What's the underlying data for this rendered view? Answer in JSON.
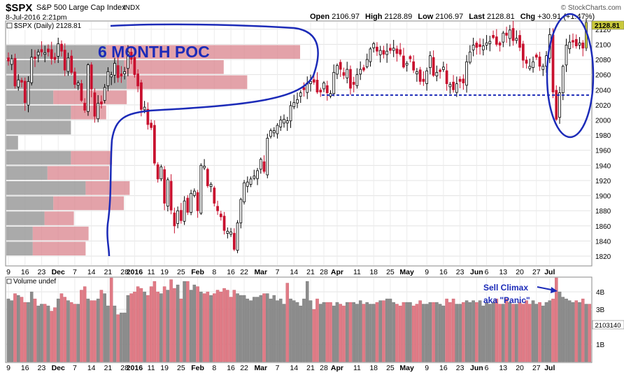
{
  "header": {
    "symbol": "$SPX",
    "name": "S&P 500 Large Cap Index",
    "exchange": "INDX",
    "date": "8-Jul-2016 2:21pm",
    "brand": "© StockCharts.com",
    "quote": {
      "open_label": "Open",
      "open": "2106.97",
      "high_label": "High",
      "high": "2128.89",
      "low_label": "Low",
      "low": "2106.97",
      "last_label": "Last",
      "last": "2128.81",
      "chg_label": "Chg",
      "chg": "+30.91 (+1.47%)"
    }
  },
  "price_panel": {
    "legend": "$SPX (Daily) 2128.81",
    "last_badge": "2128.81",
    "ylim": [
      1808,
      2130
    ],
    "y_ticks": [
      1820,
      1840,
      1860,
      1880,
      1900,
      1920,
      1940,
      1960,
      1980,
      2000,
      2020,
      2040,
      2060,
      2080,
      2100,
      2120
    ]
  },
  "volume_panel": {
    "legend": "Volume undef",
    "last_badge": "2103140",
    "ylim_billions": [
      0,
      4.8
    ],
    "y_ticks": [
      {
        "v": 1,
        "label": "1B"
      },
      {
        "v": 3,
        "label": "3B"
      },
      {
        "v": 4,
        "label": "4B"
      }
    ]
  },
  "x_axis": {
    "labels": [
      {
        "i": 0,
        "t": "9",
        "b": false
      },
      {
        "i": 5,
        "t": "16",
        "b": false
      },
      {
        "i": 10,
        "t": "23",
        "b": false
      },
      {
        "i": 15,
        "t": "Dec",
        "b": true
      },
      {
        "i": 20,
        "t": "7",
        "b": false
      },
      {
        "i": 25,
        "t": "14",
        "b": false
      },
      {
        "i": 30,
        "t": "21",
        "b": false
      },
      {
        "i": 35,
        "t": "28",
        "b": false
      },
      {
        "i": 38,
        "t": "2016",
        "b": true
      },
      {
        "i": 43,
        "t": "11",
        "b": false
      },
      {
        "i": 47,
        "t": "19",
        "b": false
      },
      {
        "i": 52,
        "t": "25",
        "b": false
      },
      {
        "i": 57,
        "t": "Feb",
        "b": true
      },
      {
        "i": 62,
        "t": "8",
        "b": false
      },
      {
        "i": 67,
        "t": "16",
        "b": false
      },
      {
        "i": 71,
        "t": "22",
        "b": false
      },
      {
        "i": 76,
        "t": "Mar",
        "b": true
      },
      {
        "i": 81,
        "t": "7",
        "b": false
      },
      {
        "i": 86,
        "t": "14",
        "b": false
      },
      {
        "i": 91,
        "t": "21",
        "b": false
      },
      {
        "i": 95,
        "t": "28",
        "b": false
      },
      {
        "i": 99,
        "t": "Apr",
        "b": true
      },
      {
        "i": 105,
        "t": "11",
        "b": false
      },
      {
        "i": 110,
        "t": "18",
        "b": false
      },
      {
        "i": 115,
        "t": "25",
        "b": false
      },
      {
        "i": 120,
        "t": "May",
        "b": true
      },
      {
        "i": 126,
        "t": "9",
        "b": false
      },
      {
        "i": 131,
        "t": "16",
        "b": false
      },
      {
        "i": 136,
        "t": "23",
        "b": false
      },
      {
        "i": 141,
        "t": "Jun",
        "b": true
      },
      {
        "i": 144,
        "t": "6",
        "b": false
      },
      {
        "i": 149,
        "t": "13",
        "b": false
      },
      {
        "i": 154,
        "t": "20",
        "b": false
      },
      {
        "i": 159,
        "t": "27",
        "b": false
      },
      {
        "i": 163,
        "t": "Jul",
        "b": true
      }
    ]
  },
  "annotations": {
    "poc_label": "6 MONTH POC",
    "sell_climax_line1": "Sell Climax",
    "sell_climax_line2": "aka \"Panic\"",
    "support_level": 2033
  },
  "colors": {
    "up": "#000000",
    "down": "#c8102e",
    "annotation_blue": "#1c2bb8",
    "vbp_gray": "#9b9b9b",
    "vbp_red": "#d9838c",
    "vol_up": "#8c8c8c",
    "vol_down": "#e07b86",
    "last_badge": "#c9c93c"
  },
  "chart_data": {
    "type": "candlestick",
    "start_date": "2015-11-09",
    "closes": [
      2078,
      2081,
      2045,
      2053,
      2050,
      2023,
      2051,
      2083,
      2081,
      2090,
      2090,
      2089,
      2090,
      2081,
      2080,
      2101,
      2091,
      2066,
      2082,
      2063,
      2047,
      2049,
      2026,
      2013,
      2073,
      2041,
      2005,
      2022,
      2021,
      2043,
      2064,
      2060,
      2075,
      2056,
      2058,
      2064,
      2090,
      2080,
      2060,
      2045,
      2014,
      2017,
      1994,
      1990,
      1943,
      1922,
      1938,
      1890,
      1921,
      1881,
      1860,
      1880,
      1867,
      1893,
      1878,
      1903,
      1906,
      1880,
      1940,
      1939,
      1913,
      1915,
      1890,
      1880,
      1872,
      1854,
      1853,
      1852,
      1829,
      1864,
      1895,
      1917,
      1918,
      1922,
      1926,
      1933,
      1948,
      1932,
      1976,
      1986,
      1986,
      1993,
      2000,
      2001,
      1999,
      2019,
      2023,
      2027,
      2036,
      2040,
      2049,
      2051,
      2050,
      2037,
      2037,
      2049,
      2036,
      2035,
      2063,
      2072,
      2067,
      2059,
      2067,
      2042,
      2047,
      2060,
      2067,
      2066,
      2080,
      2094,
      2101,
      2091,
      2092,
      2087,
      2091,
      2092,
      2095,
      2088,
      2087,
      2070,
      2075,
      2081,
      2066,
      2064,
      2051,
      2051,
      2065,
      2085,
      2059,
      2063,
      2064,
      2070,
      2048,
      2047,
      2040,
      2048,
      2051,
      2049,
      2077,
      2090,
      2099,
      2096,
      2097,
      2098,
      2102,
      2104,
      2109,
      2100,
      2099,
      2115,
      2112,
      2119,
      2105,
      2108,
      2096,
      2079,
      2075,
      2071,
      2077,
      2083,
      2071,
      2071,
      2085,
      2113,
      2037,
      2001,
      2036,
      2071,
      2099,
      2103,
      2103,
      2098,
      2102,
      2095,
      2129
    ],
    "volume_billions": [
      3.6,
      3.5,
      3.9,
      3.8,
      3.7,
      3.4,
      3.4,
      4.0,
      3.6,
      3.2,
      3.3,
      3.3,
      3.2,
      2.9,
      3.1,
      3.6,
      3.9,
      3.7,
      3.5,
      3.4,
      3.3,
      3.3,
      4.1,
      4.3,
      3.6,
      3.5,
      3.5,
      3.6,
      4.1,
      3.9,
      3.2,
      4.8,
      3.2,
      2.7,
      2.8,
      2.8,
      3.8,
      3.9,
      4.0,
      4.3,
      4.2,
      4.0,
      3.8,
      4.3,
      4.6,
      4.0,
      3.9,
      4.3,
      4.1,
      4.7,
      4.2,
      4.4,
      3.6,
      4.6,
      4.6,
      4.1,
      4.4,
      4.3,
      4.0,
      3.9,
      4.0,
      3.8,
      3.9,
      4.1,
      4.0,
      4.2,
      4.1,
      3.7,
      4.1,
      3.9,
      3.8,
      3.8,
      3.6,
      3.5,
      3.7,
      3.7,
      3.8,
      3.9,
      3.9,
      3.6,
      3.8,
      3.5,
      3.6,
      3.3,
      4.5,
      3.6,
      3.5,
      3.4,
      3.2,
      3.6,
      4.6,
      3.5,
      3.0,
      3.6,
      3.3,
      3.4,
      3.4,
      3.4,
      3.2,
      3.4,
      3.3,
      3.2,
      3.4,
      3.4,
      3.4,
      3.3,
      3.5,
      3.3,
      3.4,
      3.3,
      3.3,
      3.4,
      3.5,
      3.5,
      3.6,
      3.6,
      3.4,
      3.3,
      3.2,
      3.4,
      3.4,
      3.4,
      3.2,
      3.3,
      3.5,
      3.3,
      3.3,
      3.4,
      3.4,
      3.4,
      3.3,
      3.2,
      3.6,
      3.4,
      3.6,
      3.3,
      3.3,
      3.4,
      3.5,
      3.4,
      3.5,
      3.4,
      3.5,
      3.2,
      3.4,
      3.3,
      3.4,
      3.6,
      3.3,
      3.3,
      3.6,
      3.4,
      3.3,
      3.3,
      3.4,
      3.3,
      3.5,
      3.3,
      3.5,
      3.3,
      3.4,
      3.2,
      3.4,
      3.5,
      3.6,
      4.8,
      4.0,
      3.7,
      3.6,
      3.5,
      3.4,
      3.5,
      3.4,
      3.6,
      3.3,
      3.3
    ],
    "volume_by_price": [
      {
        "lo": 2080,
        "hi": 2100,
        "up": 0.34,
        "down": 0.66
      },
      {
        "lo": 2060,
        "hi": 2080,
        "up": 0.4,
        "down": 0.34
      },
      {
        "lo": 2040,
        "hi": 2060,
        "up": 0.41,
        "down": 0.41
      },
      {
        "lo": 2020,
        "hi": 2040,
        "up": 0.16,
        "down": 0.25
      },
      {
        "lo": 2000,
        "hi": 2020,
        "up": 0.22,
        "down": 0.12
      },
      {
        "lo": 1980,
        "hi": 2000,
        "up": 0.22,
        "down": 0.0
      },
      {
        "lo": 1960,
        "hi": 1980,
        "up": 0.04,
        "down": 0.0
      },
      {
        "lo": 1940,
        "hi": 1960,
        "up": 0.22,
        "down": 0.14
      },
      {
        "lo": 1920,
        "hi": 1940,
        "up": 0.14,
        "down": 0.21
      },
      {
        "lo": 1900,
        "hi": 1920,
        "up": 0.27,
        "down": 0.15
      },
      {
        "lo": 1880,
        "hi": 1900,
        "up": 0.16,
        "down": 0.24
      },
      {
        "lo": 1860,
        "hi": 1880,
        "up": 0.13,
        "down": 0.1
      },
      {
        "lo": 1840,
        "hi": 1860,
        "up": 0.09,
        "down": 0.19
      },
      {
        "lo": 1820,
        "hi": 1840,
        "up": 0.09,
        "down": 0.18
      }
    ]
  }
}
